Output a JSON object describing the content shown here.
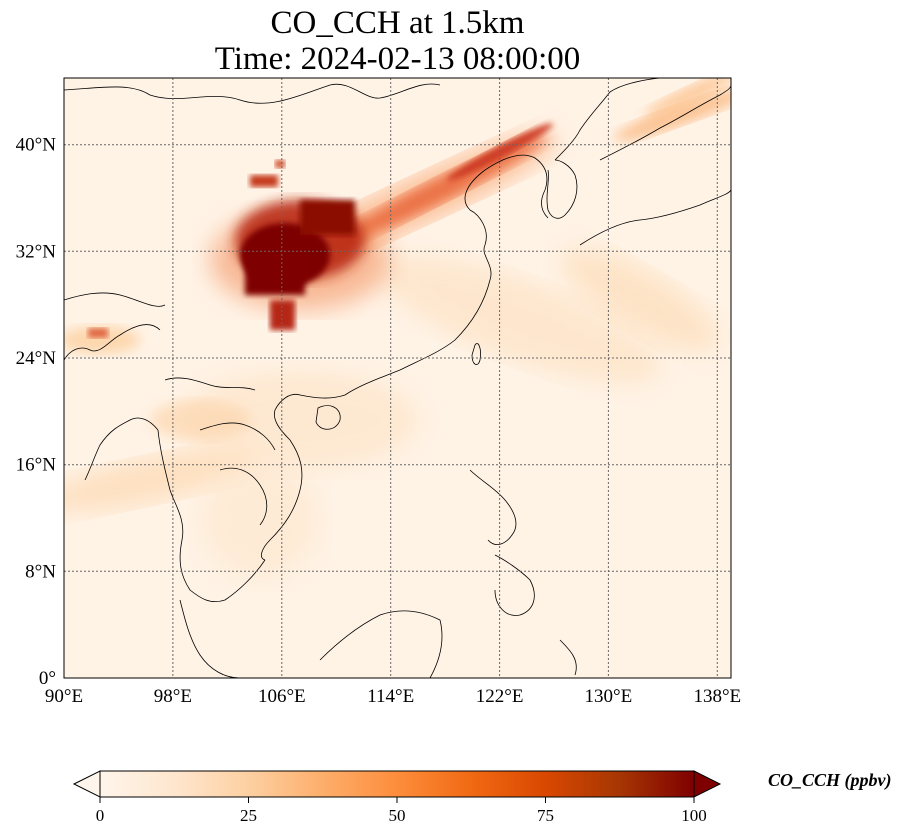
{
  "title": {
    "line1": "CO_CCH at 1.5km",
    "line2": "Time: 2024-02-13 08:00:00"
  },
  "map": {
    "lon_range": [
      90,
      139
    ],
    "lat_range": [
      0,
      45
    ],
    "lon_ticks": [
      "90°E",
      "98°E",
      "106°E",
      "114°E",
      "122°E",
      "130°E",
      "138°E"
    ],
    "lat_ticks": [
      "0°",
      "8°N",
      "16°N",
      "24°N",
      "32°N",
      "40°N"
    ],
    "gridlines": true
  },
  "colorbar": {
    "label": "CO_CCH (ppbv)",
    "ticks": [
      "0",
      "25",
      "50",
      "75",
      "100"
    ],
    "min": 0,
    "max": 100,
    "extend": "both",
    "colormap": [
      "#fff5eb",
      "#fee6ce",
      "#fdd0a2",
      "#fdae6b",
      "#fd8d3c",
      "#f16913",
      "#d94801",
      "#a63603",
      "#7f2704"
    ]
  }
}
